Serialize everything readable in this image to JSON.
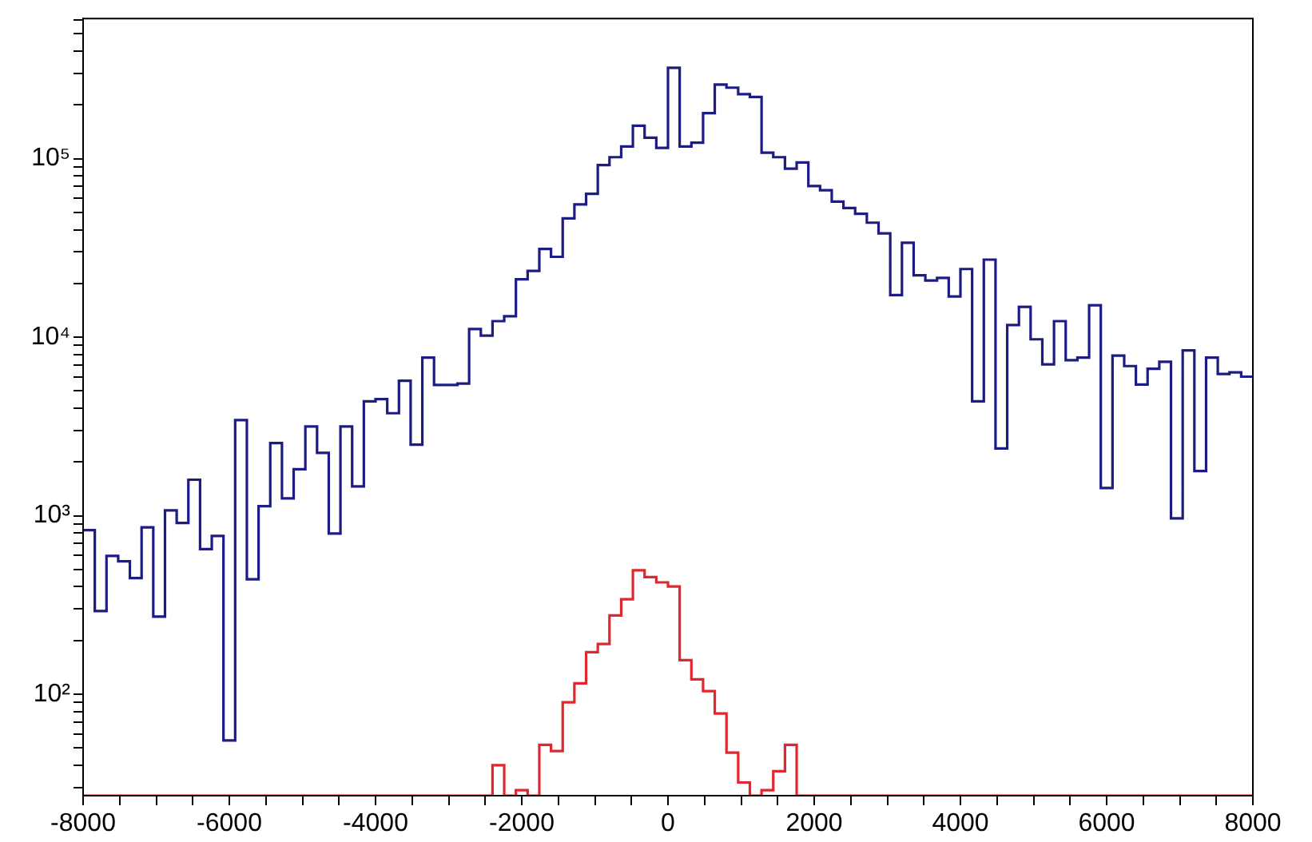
{
  "chart_data": {
    "type": "histogram",
    "log": "y",
    "grid": false,
    "legend": false,
    "bins": [
      -8000,
      -7840,
      -7680,
      -7520,
      -7360,
      -7200,
      -7040,
      -6880,
      -6720,
      -6560,
      -6400,
      -6240,
      -6080,
      -5920,
      -5760,
      -5600,
      -5440,
      -5280,
      -5120,
      -4960,
      -4800,
      -4640,
      -4480,
      -4320,
      -4160,
      -4000,
      -3840,
      -3680,
      -3520,
      -3360,
      -3200,
      -3040,
      -2880,
      -2720,
      -2560,
      -2400,
      -2240,
      -2080,
      -1920,
      -1760,
      -1600,
      -1440,
      -1280,
      -1120,
      -960,
      -800,
      -640,
      -480,
      -320,
      -160,
      0,
      160,
      320,
      480,
      640,
      800,
      960,
      1120,
      1280,
      1440,
      1600,
      1760,
      1920,
      2080,
      2240,
      2400,
      2560,
      2720,
      2880,
      3040,
      3200,
      3360,
      3520,
      3680,
      3840,
      4000,
      4160,
      4320,
      4480,
      4640,
      4800,
      4960,
      5120,
      5280,
      5440,
      5600,
      5760,
      5920,
      6080,
      6240,
      6400,
      6560,
      6720,
      6880,
      7040,
      7200,
      7360,
      7520,
      7680,
      7840,
      8000
    ],
    "series": [
      {
        "color": "#1c1c84",
        "values": [
          830,
          292,
          595,
          555,
          447,
          860,
          272,
          1070,
          910,
          1590,
          650,
          770,
          55,
          3430,
          440,
          1130,
          2550,
          1250,
          1820,
          3160,
          2250,
          795,
          3160,
          1460,
          4370,
          4500,
          3750,
          5700,
          2500,
          7680,
          5400,
          5400,
          5500,
          11100,
          10200,
          12300,
          13100,
          21100,
          23500,
          31200,
          28200,
          46300,
          55500,
          63600,
          92200,
          102000,
          117000,
          153000,
          131000,
          115000,
          323000,
          117000,
          123000,
          180000,
          260000,
          250000,
          230000,
          222000,
          108000,
          102000,
          87900,
          95300,
          70300,
          66600,
          57500,
          52900,
          49100,
          43800,
          38200,
          17200,
          33800,
          22200,
          20800,
          21500,
          16900,
          24100,
          4370,
          27200,
          2380,
          11700,
          14800,
          9730,
          7040,
          12300,
          7430,
          7680,
          15100,
          1430,
          7890,
          6890,
          5430,
          6660,
          7280,
          966,
          8440,
          1780,
          7680,
          6220,
          6350,
          6010
        ]
      },
      {
        "color": "#e0262e",
        "values": [
          null,
          null,
          null,
          null,
          null,
          null,
          null,
          null,
          null,
          null,
          null,
          null,
          null,
          null,
          null,
          null,
          null,
          null,
          null,
          null,
          null,
          null,
          null,
          null,
          null,
          null,
          null,
          null,
          null,
          null,
          null,
          null,
          null,
          null,
          null,
          40,
          null,
          29,
          null,
          52,
          48,
          90,
          115,
          172,
          191,
          276,
          340,
          494,
          453,
          423,
          401,
          155,
          121,
          104,
          78,
          47,
          32,
          null,
          29,
          37,
          52,
          null,
          null,
          null,
          null,
          null,
          null,
          null,
          null,
          null,
          null,
          null,
          null,
          null,
          null,
          null,
          null,
          null,
          null,
          null,
          null,
          null,
          null,
          null,
          null,
          null,
          null,
          null,
          null,
          null,
          null,
          null,
          null,
          null,
          null,
          null,
          null,
          null,
          null,
          null
        ]
      }
    ],
    "xlim": [
      -8000,
      8000
    ],
    "xticks": [
      -8000,
      {
        "value": -7500,
        "label": null
      },
      {
        "value": -7000,
        "label": null
      },
      {
        "value": -6500,
        "label": null
      },
      -6000,
      {
        "value": -5500,
        "label": null
      },
      {
        "value": -5000,
        "label": null
      },
      {
        "value": -4500,
        "label": null
      },
      -4000,
      {
        "value": -3500,
        "label": null
      },
      {
        "value": -3000,
        "label": null
      },
      {
        "value": -2500,
        "label": null
      },
      -2000,
      {
        "value": -1500,
        "label": null
      },
      {
        "value": -1000,
        "label": null
      },
      {
        "value": -500,
        "label": null
      },
      0,
      {
        "value": 500,
        "label": null
      },
      {
        "value": 1000,
        "label": null
      },
      {
        "value": 1500,
        "label": null
      },
      2000,
      {
        "value": 2500,
        "label": null
      },
      {
        "value": 3000,
        "label": null
      },
      {
        "value": 3500,
        "label": null
      },
      4000,
      {
        "value": 4500,
        "label": null
      },
      {
        "value": 5000,
        "label": null
      },
      {
        "value": 5500,
        "label": null
      },
      6000,
      {
        "value": 6500,
        "label": null
      },
      {
        "value": 7000,
        "label": null
      },
      {
        "value": 7500,
        "label": null
      },
      8000
    ],
    "ylim": [
      27,
      610000
    ],
    "yticks": [
      {
        "value": 30,
        "label": null
      },
      {
        "value": 40,
        "label": null
      },
      {
        "value": 50,
        "label": null
      },
      {
        "value": 60,
        "label": null
      },
      {
        "value": 70,
        "label": null
      },
      {
        "value": 80,
        "label": null
      },
      {
        "value": 90,
        "label": null
      },
      {
        "value": 100,
        "label": "10²"
      },
      {
        "value": 200,
        "label": null
      },
      {
        "value": 300,
        "label": null
      },
      {
        "value": 400,
        "label": null
      },
      {
        "value": 500,
        "label": null
      },
      {
        "value": 600,
        "label": null
      },
      {
        "value": 700,
        "label": null
      },
      {
        "value": 800,
        "label": null
      },
      {
        "value": 900,
        "label": null
      },
      {
        "value": 1000,
        "label": "10³"
      },
      {
        "value": 2000,
        "label": null
      },
      {
        "value": 3000,
        "label": null
      },
      {
        "value": 4000,
        "label": null
      },
      {
        "value": 5000,
        "label": null
      },
      {
        "value": 6000,
        "label": null
      },
      {
        "value": 7000,
        "label": null
      },
      {
        "value": 8000,
        "label": null
      },
      {
        "value": 9000,
        "label": null
      },
      {
        "value": 10000,
        "label": "10⁴"
      },
      {
        "value": 20000,
        "label": null
      },
      {
        "value": 30000,
        "label": null
      },
      {
        "value": 40000,
        "label": null
      },
      {
        "value": 50000,
        "label": null
      },
      {
        "value": 60000,
        "label": null
      },
      {
        "value": 70000,
        "label": null
      },
      {
        "value": 80000,
        "label": null
      },
      {
        "value": 90000,
        "label": null
      },
      {
        "value": 100000,
        "label": "10⁵"
      },
      {
        "value": 200000,
        "label": null
      },
      {
        "value": 300000,
        "label": null
      },
      {
        "value": 400000,
        "label": null
      },
      {
        "value": 500000,
        "label": null
      },
      {
        "value": 600000,
        "label": null
      }
    ]
  }
}
